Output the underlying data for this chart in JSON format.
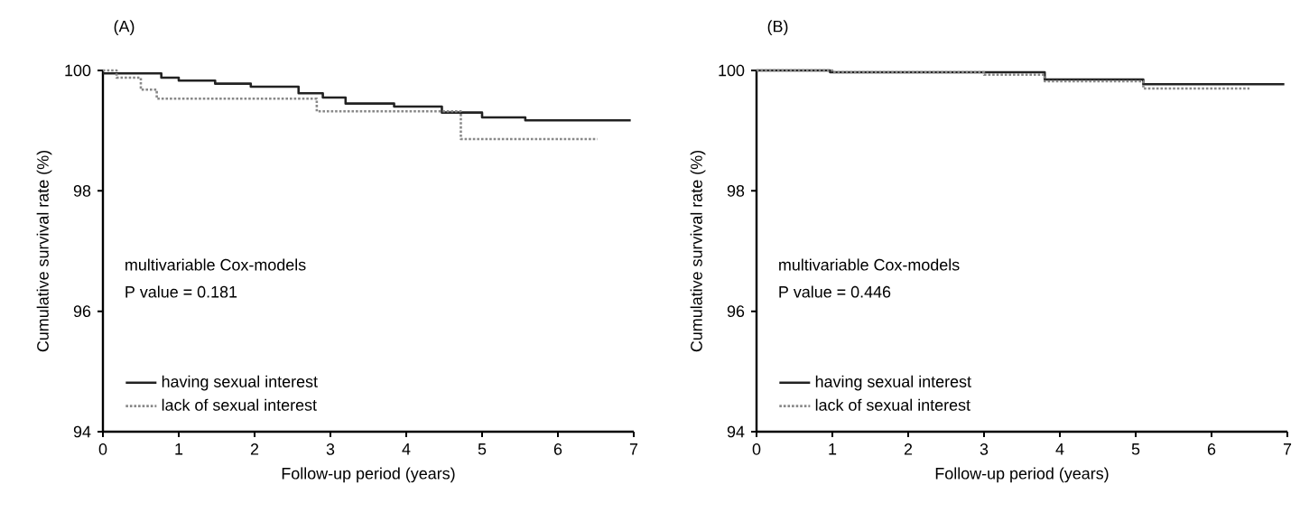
{
  "chart_data": [
    {
      "type": "step",
      "title": "(A)",
      "xlabel": "Follow-up period (years)",
      "ylabel": "Cumulative survival rate (%)",
      "xlim": [
        0,
        7
      ],
      "ylim": [
        94,
        100
      ],
      "xticks": [
        0,
        1,
        2,
        3,
        4,
        5,
        6,
        7
      ],
      "yticks": [
        94,
        96,
        98,
        100
      ],
      "legend": "bottom left",
      "annotations": [
        "multivariable Cox-models",
        "P value = 0.181"
      ],
      "series": [
        {
          "name": "having sexual interest",
          "color": "#222222",
          "line_style": "solid",
          "x": [
            0,
            0.77,
            1.0,
            1.48,
            1.95,
            2.58,
            2.9,
            3.2,
            3.84,
            4.47,
            5.0,
            5.57,
            6.96
          ],
          "values": [
            99.95,
            99.88,
            99.83,
            99.78,
            99.73,
            99.62,
            99.55,
            99.45,
            99.4,
            99.3,
            99.22,
            99.17,
            99.17
          ]
        },
        {
          "name": "lack of sexual interest",
          "color": "#888888",
          "line_style": "dotted",
          "x": [
            0,
            0.18,
            0.5,
            0.71,
            2.82,
            4.72,
            6.52
          ],
          "values": [
            100,
            99.88,
            99.68,
            99.53,
            99.32,
            98.86,
            98.86
          ]
        }
      ]
    },
    {
      "type": "step",
      "title": "(B)",
      "xlabel": "Follow-up period (years)",
      "ylabel": "Cumulative survival rate (%)",
      "xlim": [
        0,
        7
      ],
      "ylim": [
        94,
        100
      ],
      "xticks": [
        0,
        1,
        2,
        3,
        4,
        5,
        6,
        7
      ],
      "yticks": [
        94,
        96,
        98,
        100
      ],
      "legend": "bottom left",
      "annotations": [
        "multivariable Cox-models",
        "P value = 0.446"
      ],
      "series": [
        {
          "name": "having sexual interest",
          "color": "#222222",
          "line_style": "solid",
          "x": [
            0,
            0.97,
            3.8,
            5.1,
            6.96
          ],
          "values": [
            100,
            99.97,
            99.85,
            99.77,
            99.77
          ]
        },
        {
          "name": "lack of sexual interest",
          "color": "#888888",
          "line_style": "dotted",
          "x": [
            0,
            1.0,
            3.0,
            3.8,
            5.1,
            6.5
          ],
          "values": [
            100,
            99.97,
            99.93,
            99.82,
            99.7,
            99.7
          ]
        }
      ]
    }
  ]
}
